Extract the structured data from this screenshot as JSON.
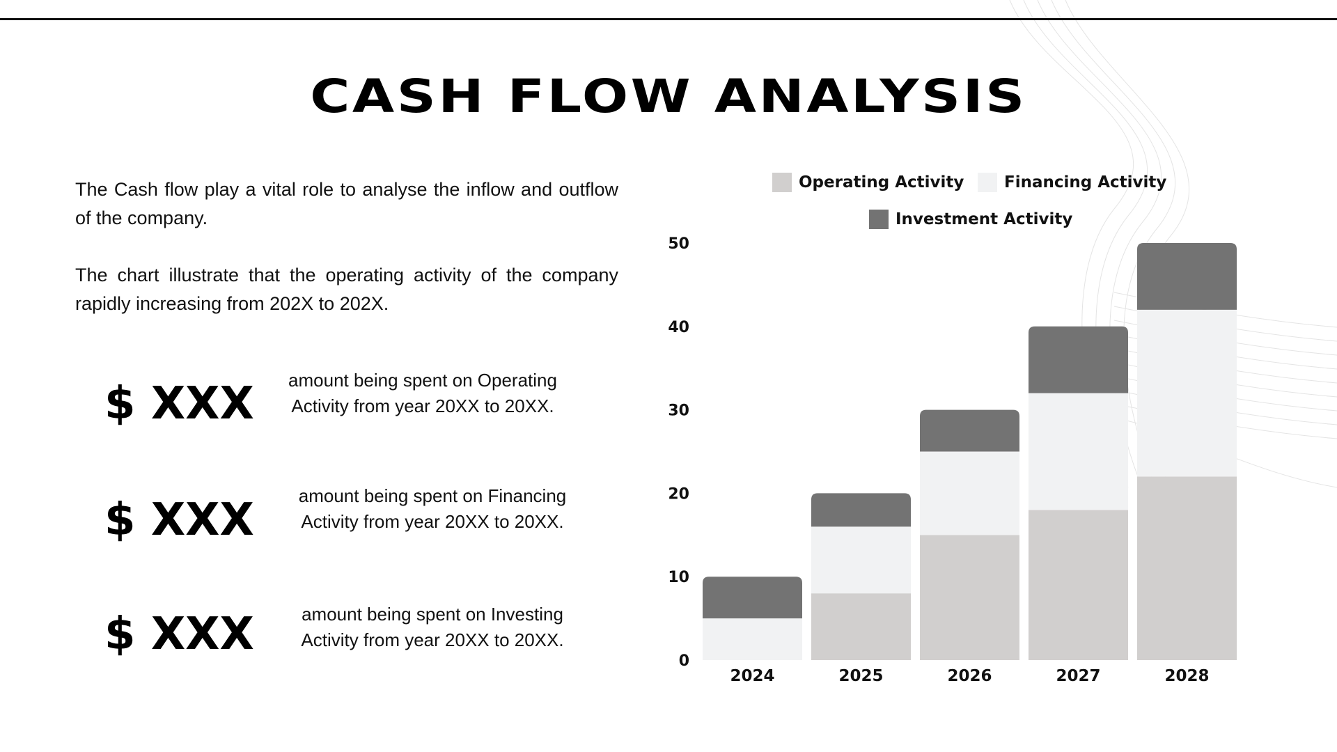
{
  "title": "CASH FLOW ANALYSIS",
  "intro": {
    "paragraph1": "The Cash flow play a vital role to analyse the inflow and outflow of the company.",
    "paragraph2": "The chart illustrate that the operating activity of the company rapidly increasing from 202X to 202X."
  },
  "stats": [
    {
      "amount": "$ XXX",
      "description": "amount being spent on Operating Activity from year 20XX to 20XX."
    },
    {
      "amount": "$ XXX",
      "description": "amount being spent on Financing Activity from year 20XX to 20XX."
    },
    {
      "amount": "$ XXX",
      "description": "amount being spent on Investing Activity from year 20XX to 20XX."
    }
  ],
  "chart_data": {
    "type": "bar",
    "stacked": true,
    "categories": [
      "2024",
      "2025",
      "2026",
      "2027",
      "2028"
    ],
    "series": [
      {
        "name": "Operating Activity",
        "color": "#d1cfce",
        "values": [
          0,
          8,
          15,
          18,
          22
        ]
      },
      {
        "name": "Financing Activity",
        "color": "#f1f2f3",
        "values": [
          5,
          8,
          10,
          14,
          20
        ]
      },
      {
        "name": "Investment Activity",
        "color": "#737373",
        "values": [
          5,
          4,
          5,
          8,
          8
        ]
      }
    ],
    "yticks": [
      "0",
      "10",
      "20",
      "30",
      "40",
      "50"
    ],
    "ylim": [
      0,
      50
    ],
    "grid": false,
    "legend_position": "top"
  }
}
